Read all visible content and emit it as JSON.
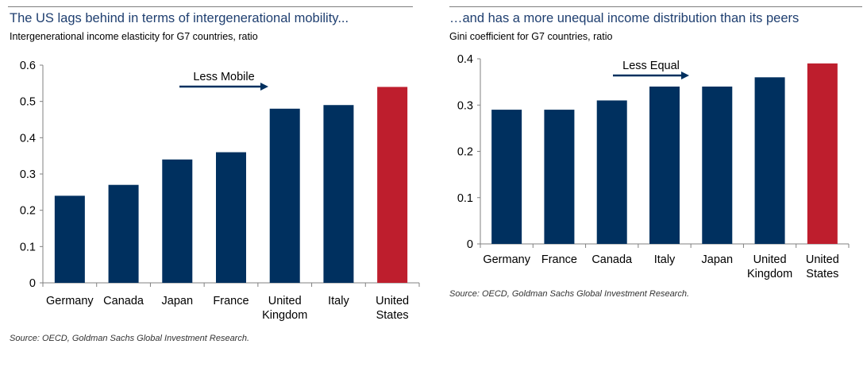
{
  "colors": {
    "bar": "#00305f",
    "highlight": "#be1e2d",
    "title": "#1f3f70",
    "arrow": "#00305f"
  },
  "charts": [
    {
      "title": "The US lags behind in terms of intergenerational mobility...",
      "subtitle": "Intergenerational income elasticity for G7 countries, ratio",
      "source": "Source: OECD, Goldman Sachs Global Investment Research.",
      "annotation": "Less Mobile"
    },
    {
      "title": "…and has a more unequal income distribution than its peers",
      "subtitle": "Gini coefficient for G7 countries, ratio",
      "source": "Source: OECD, Goldman Sachs Global Investment Research.",
      "annotation": "Less Equal"
    }
  ],
  "chart_data": [
    {
      "type": "bar",
      "title": "The US lags behind in terms of intergenerational mobility...",
      "subtitle": "Intergenerational income elasticity for G7 countries, ratio",
      "categories": [
        "Germany",
        "Canada",
        "Japan",
        "France",
        "United Kingdom",
        "Italy",
        "United States"
      ],
      "category_lines": [
        [
          "Germany"
        ],
        [
          "Canada"
        ],
        [
          "Japan"
        ],
        [
          "France"
        ],
        [
          "United",
          "Kingdom"
        ],
        [
          "Italy"
        ],
        [
          "United",
          "States"
        ]
      ],
      "values": [
        0.24,
        0.27,
        0.34,
        0.36,
        0.48,
        0.49,
        0.54
      ],
      "highlight": "United States",
      "ylim": [
        0,
        0.6
      ],
      "yticks": [
        "0",
        "0.1",
        "0.2",
        "0.3",
        "0.4",
        "0.5",
        "0.6"
      ],
      "grid": false,
      "annotation": "Less Mobile"
    },
    {
      "type": "bar",
      "title": "…and has a more unequal income distribution than its peers",
      "subtitle": "Gini coefficient for G7 countries, ratio",
      "categories": [
        "Germany",
        "France",
        "Canada",
        "Italy",
        "Japan",
        "United Kingdom",
        "United States"
      ],
      "category_lines": [
        [
          "Germany"
        ],
        [
          "France"
        ],
        [
          "Canada"
        ],
        [
          "Italy"
        ],
        [
          "Japan"
        ],
        [
          "United",
          "Kingdom"
        ],
        [
          "United",
          "States"
        ]
      ],
      "values": [
        0.29,
        0.29,
        0.31,
        0.34,
        0.34,
        0.36,
        0.39
      ],
      "highlight": "United States",
      "ylim": [
        0,
        0.4
      ],
      "yticks": [
        "0",
        "0.1",
        "0.2",
        "0.3",
        "0.4"
      ],
      "grid": false,
      "annotation": "Less Equal"
    }
  ]
}
